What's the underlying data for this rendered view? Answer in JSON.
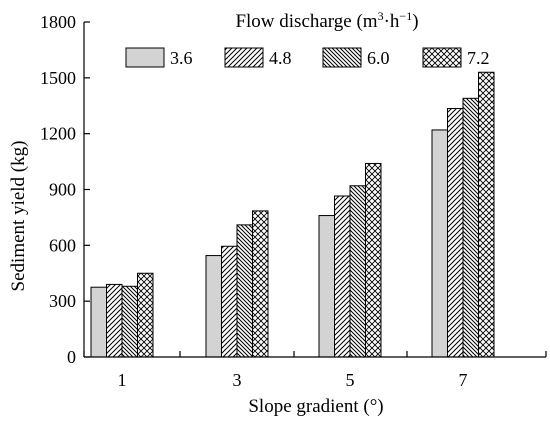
{
  "chart_data": {
    "type": "bar",
    "legend_title": {
      "prefix": "Flow discharge (m",
      "exp1": "3",
      "mid": "·h",
      "exp2": "−1",
      "suffix": ")"
    },
    "xlabel": "Slope gradient (°)",
    "ylabel": "Sediment yield (kg)",
    "categories": [
      "1",
      "3",
      "5",
      "7"
    ],
    "ylim": [
      0,
      1800
    ],
    "yticks": [
      "0",
      "300",
      "600",
      "900",
      "1200",
      "1500",
      "1800"
    ],
    "grid": false,
    "legend_position": "top",
    "series": [
      {
        "name": "3.6",
        "pattern": "solid-gray",
        "values": [
          375,
          545,
          760,
          1220
        ]
      },
      {
        "name": "4.8",
        "pattern": "diagonal-forward",
        "values": [
          390,
          595,
          865,
          1335
        ]
      },
      {
        "name": "6.0",
        "pattern": "diagonal-back",
        "values": [
          380,
          710,
          920,
          1390
        ]
      },
      {
        "name": "7.2",
        "pattern": "crosshatch",
        "values": [
          450,
          785,
          1040,
          1530
        ]
      }
    ]
  }
}
